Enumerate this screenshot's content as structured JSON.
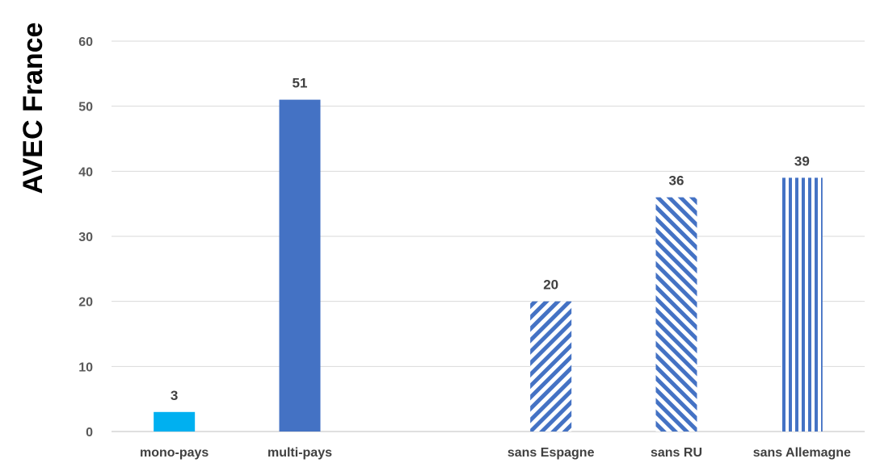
{
  "chart_data": {
    "type": "bar",
    "ylabel": "AVEC France",
    "ylim": [
      0,
      60
    ],
    "yticks": [
      0,
      10,
      20,
      30,
      40,
      50,
      60
    ],
    "grid": true,
    "categories": [
      "mono-pays",
      "multi-pays",
      "",
      "sans Espagne",
      "sans RU",
      "sans Allemagne"
    ],
    "values": [
      3,
      51,
      null,
      20,
      36,
      39
    ],
    "data_labels": [
      "3",
      "51",
      "",
      "20",
      "36",
      "39"
    ],
    "bar_styles": [
      "solid-light",
      "solid",
      "none",
      "diagonal-up",
      "diagonal-down",
      "vertical"
    ],
    "colors": {
      "light": "#00b0f0",
      "primary": "#4472c4",
      "grid": "#d9d9d9"
    }
  }
}
